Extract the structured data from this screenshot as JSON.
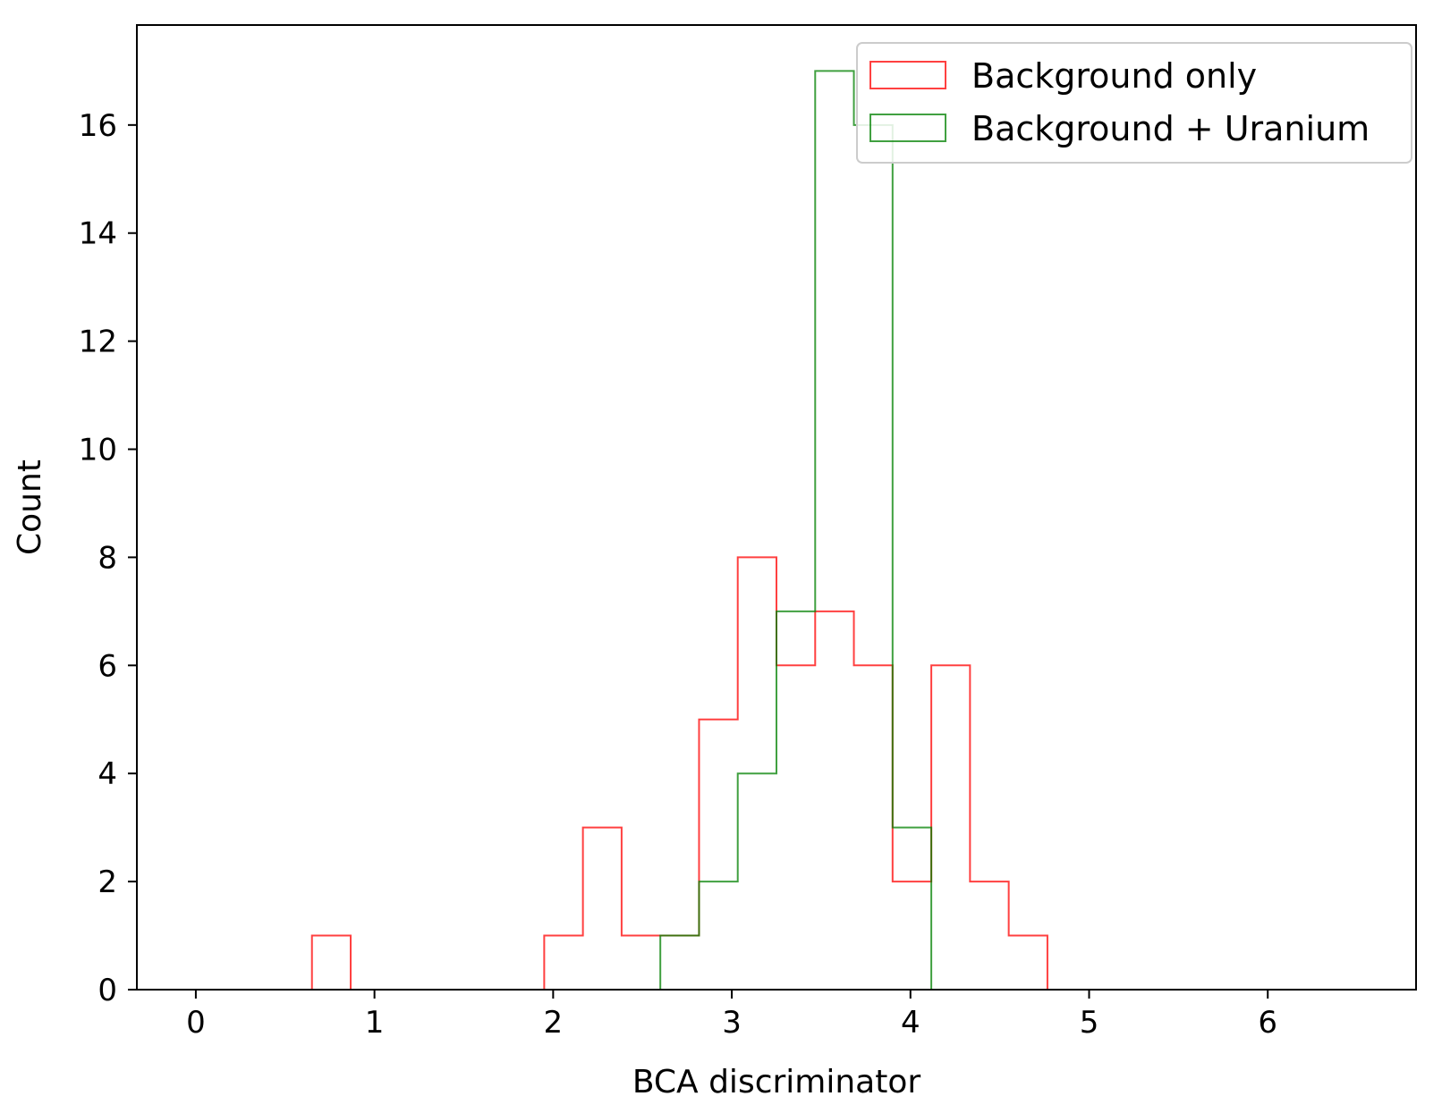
{
  "chart_data": {
    "type": "histogram",
    "xlabel": "BCA discriminator",
    "ylabel": "Count",
    "xlim": [
      -0.33,
      6.83
    ],
    "ylim": [
      0,
      17.85
    ],
    "x_ticks": [
      0,
      1,
      2,
      3,
      4,
      5,
      6
    ],
    "y_ticks": [
      0,
      2,
      4,
      6,
      8,
      10,
      12,
      14,
      16
    ],
    "grid": false,
    "legend_position": "top-right",
    "bin_edges": [
      0.0,
      0.2167,
      0.4333,
      0.65,
      0.8667,
      1.0833,
      1.3,
      1.5167,
      1.7333,
      1.95,
      2.1667,
      2.3833,
      2.6,
      2.8167,
      3.0333,
      3.25,
      3.4667,
      3.6833,
      3.9,
      4.1167,
      4.3333,
      4.55,
      4.7667,
      4.9833,
      5.2,
      5.4167,
      5.6333,
      5.85,
      6.0667,
      6.2833,
      6.5
    ],
    "series": [
      {
        "name": "Background only",
        "color": "#ff0000",
        "counts": [
          0,
          0,
          0,
          1,
          0,
          0,
          0,
          0,
          0,
          1,
          3,
          1,
          1,
          5,
          8,
          6,
          7,
          6,
          2,
          6,
          2,
          1,
          0,
          0,
          0,
          0,
          0,
          0,
          0,
          0
        ]
      },
      {
        "name": "Background + Uranium",
        "color": "#008000",
        "counts": [
          0,
          0,
          0,
          0,
          0,
          0,
          0,
          0,
          0,
          0,
          0,
          0,
          1,
          2,
          4,
          7,
          17,
          16,
          3,
          0,
          0,
          0,
          0,
          0,
          0,
          0,
          0,
          0,
          0,
          0
        ]
      }
    ]
  }
}
